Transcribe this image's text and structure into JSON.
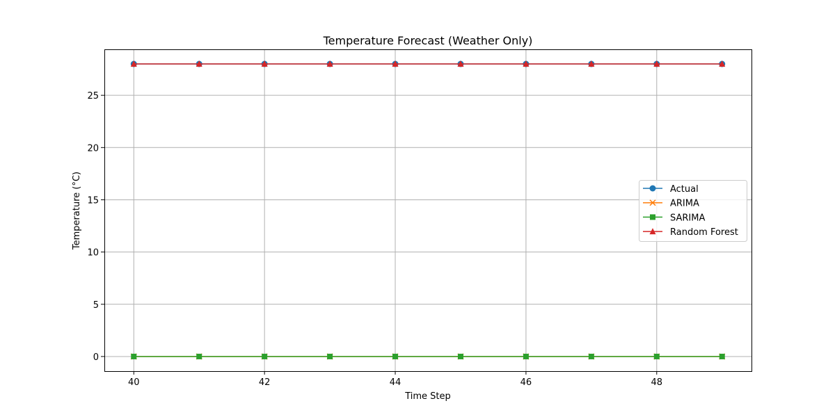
{
  "chart_data": {
    "type": "line",
    "title": "Temperature Forecast (Weather Only)",
    "xlabel": "Time Step",
    "ylabel": "Temperature (°C)",
    "xlim": [
      39.55,
      49.45
    ],
    "ylim": [
      -1.4,
      29.4
    ],
    "xticks": [
      40,
      42,
      44,
      46,
      48
    ],
    "yticks": [
      0,
      5,
      10,
      15,
      20,
      25
    ],
    "grid": true,
    "legend_position": "center-right",
    "x": [
      40,
      41,
      42,
      43,
      44,
      45,
      46,
      47,
      48,
      49
    ],
    "series": [
      {
        "name": "Actual",
        "color": "#1f77b4",
        "marker": "circle",
        "values": [
          28,
          28,
          28,
          28,
          28,
          28,
          28,
          28,
          28,
          28
        ]
      },
      {
        "name": "ARIMA",
        "color": "#ff7f0e",
        "marker": "x",
        "values": [
          0,
          0,
          0,
          0,
          0,
          0,
          0,
          0,
          0,
          0
        ]
      },
      {
        "name": "SARIMA",
        "color": "#2ca02c",
        "marker": "square",
        "values": [
          0,
          0,
          0,
          0,
          0,
          0,
          0,
          0,
          0,
          0
        ]
      },
      {
        "name": "Random Forest",
        "color": "#d62728",
        "marker": "triangle",
        "values": [
          28,
          28,
          28,
          28,
          28,
          28,
          28,
          28,
          28,
          28
        ]
      }
    ]
  }
}
